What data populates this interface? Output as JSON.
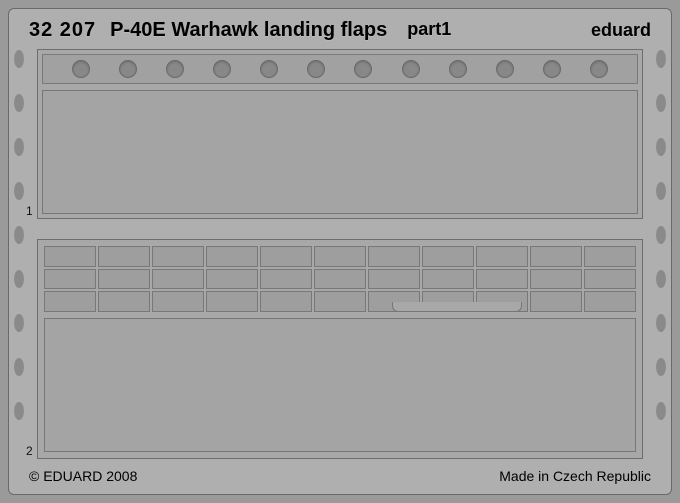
{
  "header": {
    "part_number": "32 207",
    "name": "P-40E Warhawk landing flaps",
    "part_label": "part1",
    "brand": "eduard"
  },
  "footer": {
    "copyright": "© EDUARD 2008",
    "made_in": "Made in Czech Republic"
  },
  "sheet": {
    "background_color": "#9a9a9a",
    "fret_color": "#afafaf",
    "border_color": "#6a6a6a",
    "text_color": "#000000"
  },
  "panel1": {
    "label": "1",
    "lightening_holes": 12,
    "hole_color": "#888888",
    "hole_border": "#6a6a6a",
    "panel_color": "#a8a8a8",
    "skin_color": "#a4a4a4",
    "strip_color": "#a1a1a1"
  },
  "panel2": {
    "label": "2",
    "rib_cols": 11,
    "rib_rows": 3,
    "cell_color": "#9e9e9e",
    "cell_border": "#787878",
    "panel_color": "#a8a8a8",
    "skin_color": "#a4a4a4"
  },
  "drops": {
    "count_per_side": 9,
    "color": "#8a8a8a"
  }
}
